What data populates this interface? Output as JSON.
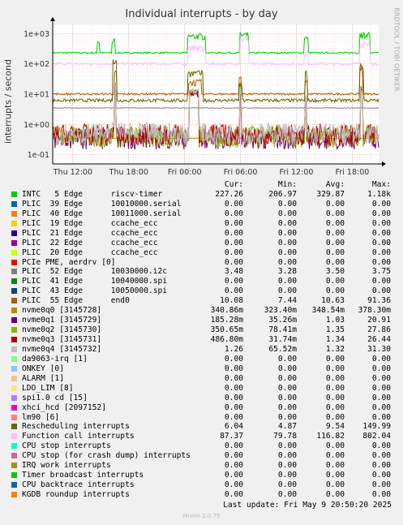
{
  "title": "Individual interrupts - by day",
  "ylabel": "interrupts / second",
  "rrdtool": "RRDTOOL / TOBI OETIKER",
  "columns": {
    "cur": "Cur:",
    "min": "Min:",
    "avg": "Avg:",
    "max": "Max:"
  },
  "last_update": "Last update: Fri May  9 20:50:20 2025",
  "munin_version": "Munin 2.0.75",
  "legend": [
    {
      "label": "INTC   5 Edge      riscv-timer",
      "color": "#00cc00",
      "cur": "227.26",
      "min": "206.97",
      "avg": "329.87",
      "max": "1.18k"
    },
    {
      "label": "PLIC  39 Edge      10010000.serial",
      "color": "#0066b3",
      "cur": "0.00",
      "min": "0.00",
      "avg": "0.00",
      "max": "0.00"
    },
    {
      "label": "PLIC  40 Edge      10011000.serial",
      "color": "#ff8000",
      "cur": "0.00",
      "min": "0.00",
      "avg": "0.00",
      "max": "0.00"
    },
    {
      "label": "PLIC  19 Edge      ccache_ecc",
      "color": "#ffcc00",
      "cur": "0.00",
      "min": "0.00",
      "avg": "0.00",
      "max": "0.00"
    },
    {
      "label": "PLIC  21 Edge      ccache_ecc",
      "color": "#330099",
      "cur": "0.00",
      "min": "0.00",
      "avg": "0.00",
      "max": "0.00"
    },
    {
      "label": "PLIC  22 Edge      ccache_ecc",
      "color": "#990099",
      "cur": "0.00",
      "min": "0.00",
      "avg": "0.00",
      "max": "0.00"
    },
    {
      "label": "PLIC  20 Edge      ccache_ecc",
      "color": "#ccff00",
      "cur": "0.00",
      "min": "0.00",
      "avg": "0.00",
      "max": "0.00"
    },
    {
      "label": "PCIe PME, aerdrv [0]",
      "color": "#ff0000",
      "cur": "0.00",
      "min": "0.00",
      "avg": "0.00",
      "max": "0.00"
    },
    {
      "label": "PLIC  52 Edge      10030000.i2c",
      "color": "#808080",
      "cur": "3.48",
      "min": "3.28",
      "avg": "3.50",
      "max": "3.75"
    },
    {
      "label": "PLIC  41 Edge      10040000.spi",
      "color": "#008f00",
      "cur": "0.00",
      "min": "0.00",
      "avg": "0.00",
      "max": "0.00"
    },
    {
      "label": "PLIC  43 Edge      10050000.spi",
      "color": "#00487d",
      "cur": "0.00",
      "min": "0.00",
      "avg": "0.00",
      "max": "0.00"
    },
    {
      "label": "PLIC  55 Edge      end0",
      "color": "#b35a00",
      "cur": "10.08",
      "min": "7.44",
      "avg": "10.63",
      "max": "91.36"
    },
    {
      "label": "nvme0q0 [3145728]",
      "color": "#b38f00",
      "cur": "340.86m",
      "min": "323.40m",
      "avg": "348.54m",
      "max": "378.30m"
    },
    {
      "label": "nvme0q1 [3145729]",
      "color": "#6b006b",
      "cur": "185.28m",
      "min": "35.26m",
      "avg": "1.03",
      "max": "20.91"
    },
    {
      "label": "nvme0q2 [3145730]",
      "color": "#8fb300",
      "cur": "350.65m",
      "min": "78.41m",
      "avg": "1.35",
      "max": "27.86"
    },
    {
      "label": "nvme0q3 [3145731]",
      "color": "#b30000",
      "cur": "486.80m",
      "min": "31.74m",
      "avg": "1.34",
      "max": "26.44"
    },
    {
      "label": "nvme0q4 [3145732]",
      "color": "#bebebe",
      "cur": "1.26",
      "min": "65.52m",
      "avg": "1.32",
      "max": "31.30"
    },
    {
      "label": "da9063-irq [1]",
      "color": "#80ff80",
      "cur": "0.00",
      "min": "0.00",
      "avg": "0.00",
      "max": "0.00"
    },
    {
      "label": "ONKEY [0]",
      "color": "#80c9ff",
      "cur": "0.00",
      "min": "0.00",
      "avg": "0.00",
      "max": "0.00"
    },
    {
      "label": "ALARM [1]",
      "color": "#ffc080",
      "cur": "0.00",
      "min": "0.00",
      "avg": "0.00",
      "max": "0.00"
    },
    {
      "label": "LDO_LIM [8]",
      "color": "#ffe680",
      "cur": "0.00",
      "min": "0.00",
      "avg": "0.00",
      "max": "0.00"
    },
    {
      "label": "spi1.0 cd [15]",
      "color": "#aa80ff",
      "cur": "0.00",
      "min": "0.00",
      "avg": "0.00",
      "max": "0.00"
    },
    {
      "label": "xhci_hcd [2097152]",
      "color": "#ee00cc",
      "cur": "0.00",
      "min": "0.00",
      "avg": "0.00",
      "max": "0.00"
    },
    {
      "label": "lm90 [6]",
      "color": "#ff8080",
      "cur": "0.00",
      "min": "0.00",
      "avg": "0.00",
      "max": "0.00"
    },
    {
      "label": "Rescheduling interrupts",
      "color": "#666600",
      "cur": "6.04",
      "min": "4.87",
      "avg": "9.54",
      "max": "149.99"
    },
    {
      "label": "Function call interrupts",
      "color": "#ffbfff",
      "cur": "87.37",
      "min": "79.78",
      "avg": "116.82",
      "max": "802.04"
    },
    {
      "label": "CPU stop interrupts",
      "color": "#00ffcc",
      "cur": "0.00",
      "min": "0.00",
      "avg": "0.00",
      "max": "0.00"
    },
    {
      "label": "CPU stop (for crash dump) interrupts",
      "color": "#cc6699",
      "cur": "0.00",
      "min": "0.00",
      "avg": "0.00",
      "max": "0.00"
    },
    {
      "label": "IRQ work interrupts",
      "color": "#999900",
      "cur": "0.00",
      "min": "0.00",
      "avg": "0.00",
      "max": "0.00"
    },
    {
      "label": "Timer broadcast interrupts",
      "color": "#00cc00",
      "cur": "0.00",
      "min": "0.00",
      "avg": "0.00",
      "max": "0.00"
    },
    {
      "label": "CPU backtrace interrupts",
      "color": "#0066b3",
      "cur": "0.00",
      "min": "0.00",
      "avg": "0.00",
      "max": "0.00"
    },
    {
      "label": "KGDB roundup interrupts",
      "color": "#ff8000",
      "cur": "0.00",
      "min": "0.00",
      "avg": "0.00",
      "max": "0.00"
    }
  ],
  "chart_data": {
    "type": "line",
    "title": "Individual interrupts - by day",
    "ylabel": "interrupts / second",
    "yscale": "log",
    "ylim": [
      0.05,
      2000
    ],
    "yticks": [
      {
        "v": 0.1,
        "label": "1e-01"
      },
      {
        "v": 1,
        "label": "1e+00"
      },
      {
        "v": 10,
        "label": "1e+01"
      },
      {
        "v": 100,
        "label": "1e+02"
      },
      {
        "v": 1000,
        "label": "1e+03"
      }
    ],
    "xlim": [
      "Thu 09:50",
      "Fri 20:50"
    ],
    "xticks": [
      {
        "h": 12,
        "label": "Thu 12:00"
      },
      {
        "h": 18,
        "label": "Thu 18:00"
      },
      {
        "h": 24,
        "label": "Fri 00:00"
      },
      {
        "h": 30,
        "label": "Fri 06:00"
      },
      {
        "h": 36,
        "label": "Fri 12:00"
      },
      {
        "h": 42,
        "label": "Fri 18:00"
      }
    ],
    "grid": true,
    "series": [
      {
        "name": "INTC   5 Edge      riscv-timer",
        "color": "#00cc00",
        "base": 230,
        "noise": 0.05,
        "bursts": [
          [
            14.6,
            14.9,
            700
          ],
          [
            16.2,
            16.5,
            700
          ],
          [
            24.3,
            26.2,
            1000
          ],
          [
            29.9,
            30.9,
            1100
          ],
          [
            36.8,
            37.3,
            800
          ],
          [
            42.8,
            43.9,
            1150
          ]
        ]
      },
      {
        "name": "Function call interrupts",
        "color": "#ffbfff",
        "base": 100,
        "noise": 0.08,
        "bursts": [
          [
            24.3,
            26.2,
            400
          ],
          [
            29.9,
            30.9,
            800
          ],
          [
            36.8,
            37.3,
            300
          ],
          [
            42.8,
            43.9,
            550
          ]
        ]
      },
      {
        "name": "PLIC  55 Edge      end0",
        "color": "#b35a00",
        "base": 10.1,
        "noise": 0.06,
        "bursts": [
          [
            16.4,
            16.7,
            60
          ],
          [
            24.4,
            25.8,
            30
          ],
          [
            29.8,
            30.1,
            45
          ],
          [
            36.9,
            37.2,
            40
          ],
          [
            42.8,
            43.1,
            91
          ]
        ]
      },
      {
        "name": "Rescheduling interrupts",
        "color": "#666600",
        "base": 6.2,
        "noise": 0.1,
        "bursts": [
          [
            16.3,
            16.7,
            150
          ],
          [
            24.3,
            26.0,
            60
          ],
          [
            29.8,
            30.2,
            25
          ],
          [
            36.9,
            37.2,
            60
          ],
          [
            42.8,
            43.2,
            100
          ]
        ]
      },
      {
        "name": "PLIC  52 Edge      10030000.i2c",
        "color": "#808080",
        "base": 3.5,
        "noise": 0.02,
        "bursts": []
      },
      {
        "name": "nvme0q0 [3145728]",
        "color": "#b38f00",
        "base": 0.35,
        "noise": 0.02,
        "bursts": []
      },
      {
        "name": "nvme0q1 [3145729]",
        "color": "#6b006b",
        "base": 0.35,
        "noise": 0.7,
        "bursts": [
          [
            16.4,
            16.6,
            20
          ],
          [
            24.5,
            25.5,
            12
          ],
          [
            29.9,
            30.1,
            14
          ],
          [
            36.9,
            37.1,
            8
          ],
          [
            42.9,
            43.1,
            18
          ]
        ]
      },
      {
        "name": "nvme0q2 [3145730]",
        "color": "#8fb300",
        "base": 0.4,
        "noise": 0.7,
        "bursts": [
          [
            16.4,
            16.6,
            27
          ],
          [
            24.5,
            25.5,
            15
          ],
          [
            29.9,
            30.1,
            20
          ],
          [
            36.9,
            37.1,
            10
          ],
          [
            42.9,
            43.1,
            20
          ]
        ]
      },
      {
        "name": "nvme0q3 [3145731]",
        "color": "#b30000",
        "base": 0.45,
        "noise": 0.7,
        "bursts": [
          [
            16.4,
            16.6,
            26
          ],
          [
            24.5,
            25.5,
            14
          ],
          [
            29.9,
            30.1,
            15
          ],
          [
            36.9,
            37.1,
            9
          ],
          [
            42.9,
            43.1,
            16
          ]
        ]
      },
      {
        "name": "nvme0q4 [3145732]",
        "color": "#bebebe",
        "base": 0.5,
        "noise": 0.7,
        "bursts": [
          [
            16.4,
            16.6,
            31
          ],
          [
            24.5,
            25.5,
            16
          ],
          [
            29.9,
            30.1,
            18
          ],
          [
            36.9,
            37.1,
            10
          ],
          [
            42.9,
            43.1,
            19
          ]
        ]
      }
    ]
  }
}
